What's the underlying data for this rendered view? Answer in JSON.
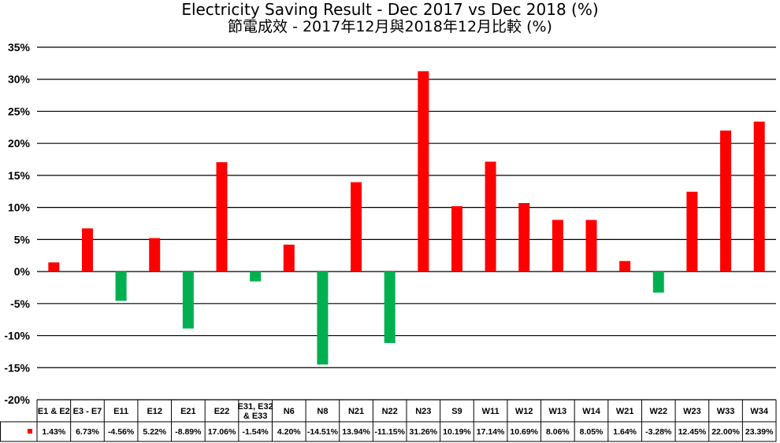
{
  "chart_data": {
    "type": "bar",
    "title": "Electricity Saving Result - Dec 2017 vs Dec 2018 (%)",
    "subtitle": "節電成效 - 2017年12月與2018年12月比較 (%)",
    "xlabel": "",
    "ylabel": "",
    "ylim": [
      -20,
      35
    ],
    "yticks": [
      "35%",
      "30%",
      "25%",
      "20%",
      "15%",
      "10%",
      "5%",
      "0%",
      "-5%",
      "-10%",
      "-15%",
      "-20%"
    ],
    "grid": true,
    "legend": "data-table",
    "positive_color": "#ff0000",
    "negative_color": "#00b050",
    "categories": [
      "E1 & E2",
      "E3 - E7",
      "E11",
      "E12",
      "E21",
      "E22",
      "E31, E32 & E33",
      "N6",
      "N8",
      "N21",
      "N22",
      "N23",
      "S9",
      "W11",
      "W12",
      "W13",
      "W14",
      "W21",
      "W22",
      "W23",
      "W33",
      "W34"
    ],
    "category_lines": [
      [
        "E1 & E2"
      ],
      [
        "E3 - E7"
      ],
      [
        "E11"
      ],
      [
        "E12"
      ],
      [
        "E21"
      ],
      [
        "E22"
      ],
      [
        "E31, E32",
        "& E33"
      ],
      [
        "N6"
      ],
      [
        "N8"
      ],
      [
        "N21"
      ],
      [
        "N22"
      ],
      [
        "N23"
      ],
      [
        "S9"
      ],
      [
        "W11"
      ],
      [
        "W12"
      ],
      [
        "W13"
      ],
      [
        "W14"
      ],
      [
        "W21"
      ],
      [
        "W22"
      ],
      [
        "W23"
      ],
      [
        "W33"
      ],
      [
        "W34"
      ]
    ],
    "values": [
      1.43,
      6.73,
      -4.56,
      5.22,
      -8.89,
      17.06,
      -1.54,
      4.2,
      -14.51,
      13.94,
      -11.15,
      31.26,
      10.19,
      17.14,
      10.69,
      8.06,
      8.05,
      1.64,
      -3.28,
      12.45,
      22.0,
      23.39
    ],
    "value_labels": [
      "1.43%",
      "6.73%",
      "-4.56%",
      "5.22%",
      "-8.89%",
      "17.06%",
      "-1.54%",
      "4.20%",
      "-14.51%",
      "13.94%",
      "-11.15%",
      "31.26%",
      "10.19%",
      "17.14%",
      "10.69%",
      "8.06%",
      "8.05%",
      "1.64%",
      "-3.28%",
      "12.45%",
      "22.00%",
      "23.39%"
    ],
    "legend_marker_color": "#ff0000"
  }
}
